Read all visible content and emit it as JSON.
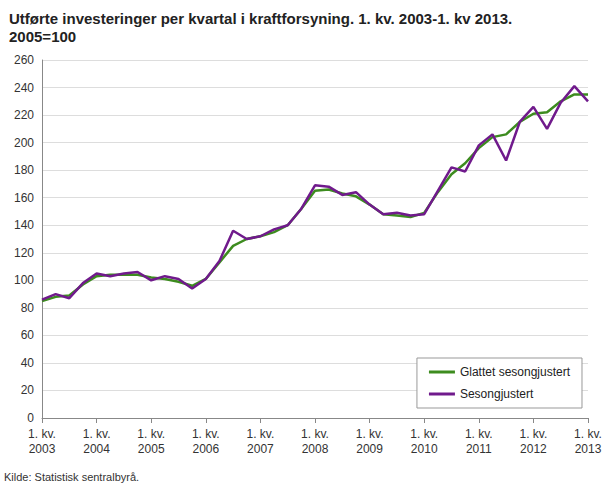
{
  "chart_data": {
    "type": "line",
    "title": "Utførte investeringer per kvartal i kraftforsyning. 1. kv. 2003-1. kv 2013.\n2005=100",
    "source": "Kilde: Statistisk sentralbyrå.",
    "categories": [
      "1. kv.\n2003",
      null,
      null,
      null,
      "1. kv.\n2004",
      null,
      null,
      null,
      "1. kv.\n2005",
      null,
      null,
      null,
      "1. kv.\n2006",
      null,
      null,
      null,
      "1. kv.\n2007",
      null,
      null,
      null,
      "1. kv.\n2008",
      null,
      null,
      null,
      "1. kv.\n2009",
      null,
      null,
      null,
      "1. kv.\n2010",
      null,
      null,
      null,
      "1. kv.\n2011",
      null,
      null,
      null,
      "1. kv.\n2012",
      null,
      null,
      null,
      "1. kv.\n2013"
    ],
    "series": [
      {
        "name": "Glattet sesongjustert",
        "color": "#3d8c1f",
        "values": [
          85,
          88,
          89,
          97,
          103,
          104,
          104,
          104,
          102,
          101,
          99,
          96,
          101,
          113,
          125,
          130,
          132,
          135,
          140,
          152,
          165,
          166,
          163,
          161,
          155,
          148,
          147,
          146,
          149,
          164,
          177,
          185,
          196,
          204,
          206,
          215,
          221,
          222,
          230,
          235,
          235
        ]
      },
      {
        "name": "Sesongjustert",
        "color": "#701a8c",
        "values": [
          86,
          90,
          87,
          98,
          105,
          103,
          105,
          106,
          100,
          103,
          101,
          94,
          101,
          114,
          136,
          130,
          132,
          137,
          140,
          152,
          169,
          168,
          162,
          164,
          155,
          148,
          149,
          147,
          148,
          165,
          182,
          179,
          198,
          206,
          187,
          215,
          226,
          210,
          229,
          241,
          230
        ]
      }
    ],
    "ylim": [
      0,
      260
    ],
    "yticks": [
      0,
      20,
      40,
      60,
      80,
      100,
      120,
      140,
      160,
      180,
      200,
      220,
      240,
      260
    ],
    "grid": true,
    "legend": "bottom-right"
  }
}
